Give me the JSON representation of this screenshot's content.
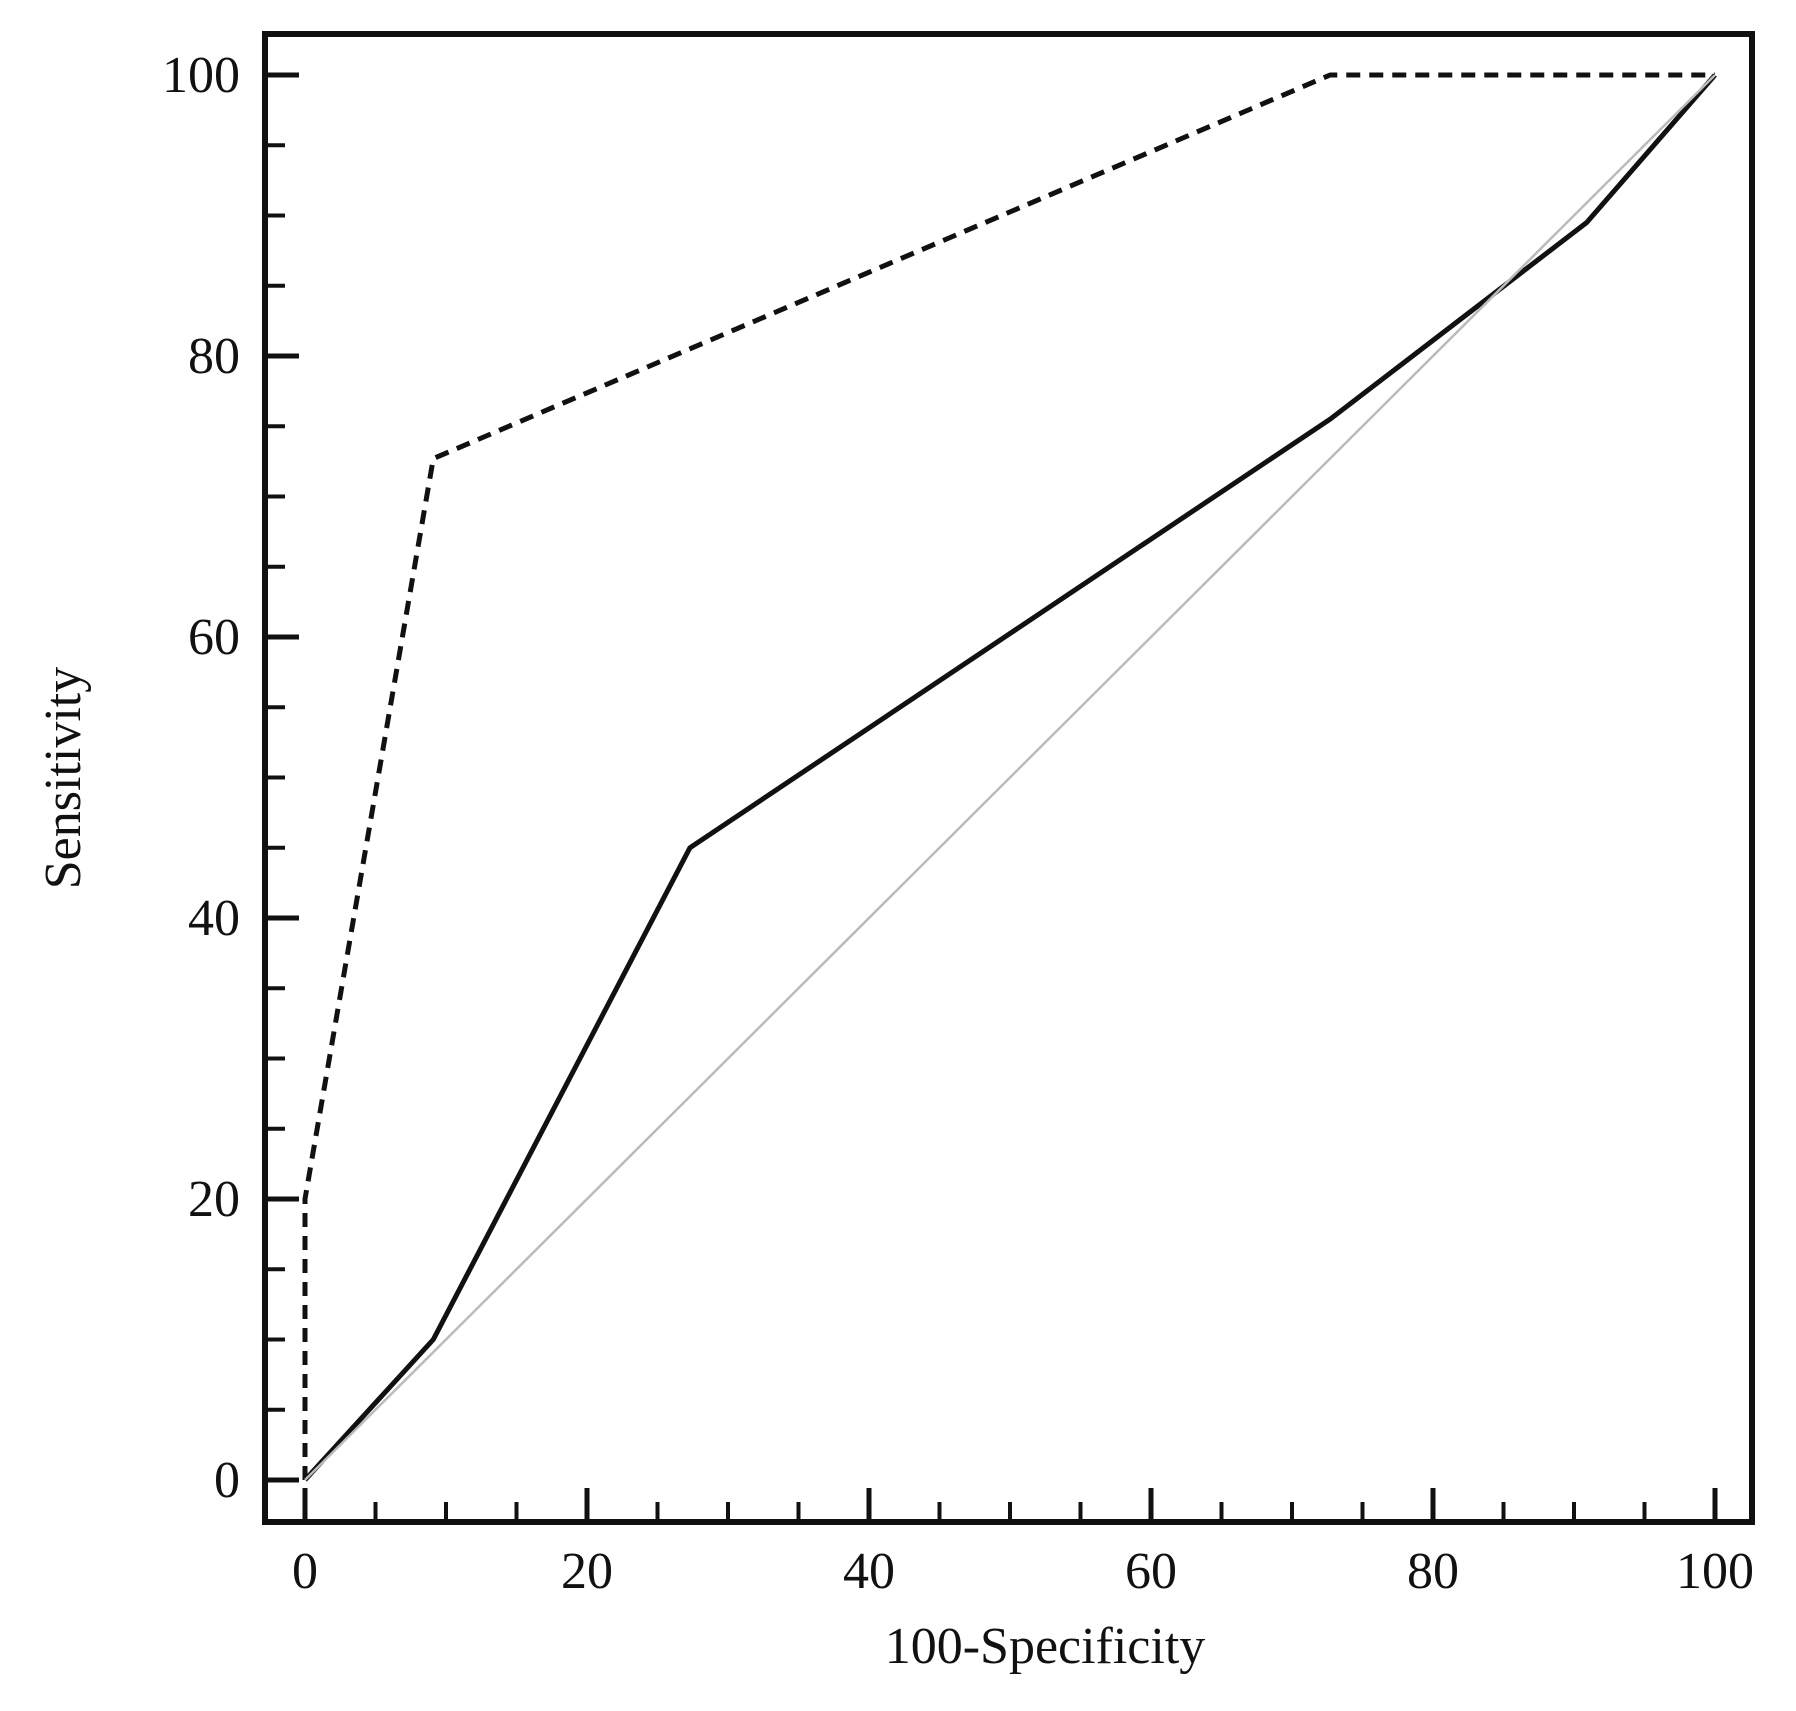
{
  "chart_data": {
    "type": "line",
    "title": "",
    "xlabel": "100-Specificity",
    "ylabel": "Sensitivity",
    "xlim": [
      0,
      100
    ],
    "ylim": [
      0,
      100
    ],
    "x_ticks": [
      0,
      20,
      40,
      60,
      80,
      100
    ],
    "y_ticks": [
      0,
      20,
      40,
      60,
      80,
      100
    ],
    "x_minor_step": 5,
    "y_minor_step": 5,
    "grid": false,
    "legend": "none",
    "series": [
      {
        "style": "dashed",
        "color": "#111111",
        "points": [
          [
            0,
            0
          ],
          [
            0,
            20
          ],
          [
            9.1,
            72.7
          ],
          [
            72.7,
            100
          ],
          [
            100,
            100
          ]
        ]
      },
      {
        "style": "solid",
        "color": "#111111",
        "points": [
          [
            0,
            0
          ],
          [
            9.1,
            10
          ],
          [
            27.3,
            45
          ],
          [
            72.7,
            75.5
          ],
          [
            90.9,
            89.5
          ],
          [
            100,
            100
          ]
        ]
      },
      {
        "style": "reference",
        "color": "#bbbbbb",
        "points": [
          [
            0,
            0
          ],
          [
            100,
            100
          ]
        ]
      }
    ]
  }
}
